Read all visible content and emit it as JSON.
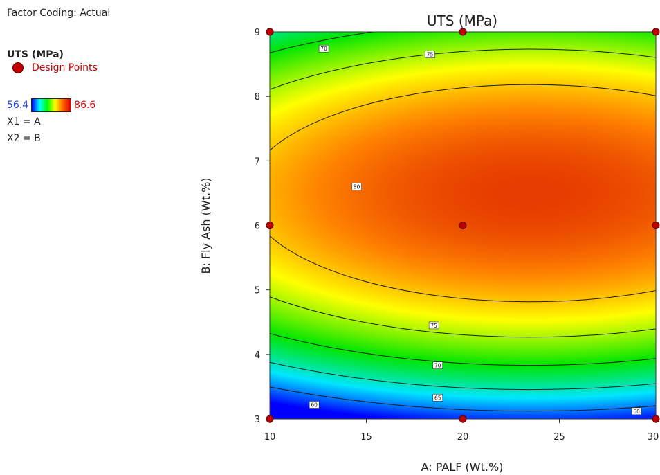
{
  "legend": {
    "factor_coding": "Factor Coding: Actual",
    "response_title": "UTS (MPa)",
    "design_points_label": "Design Points",
    "scale_min": "56.4",
    "scale_max": "86.6",
    "x1": "X1 = A",
    "x2": "X2 = B"
  },
  "colors": {
    "design_point": "#c00000",
    "scale_min_text": "#1f3fe0",
    "scale_max_text": "#dd0000"
  },
  "chart_data": {
    "type": "heatmap",
    "subtype": "contour",
    "title": "UTS (MPa)",
    "xlabel": "A: PALF (Wt.%)",
    "ylabel": "B: Fly Ash (Wt.%)",
    "xlim": [
      10,
      30
    ],
    "ylim": [
      3,
      9
    ],
    "x_ticks": [
      "10",
      "15",
      "20",
      "25",
      "30"
    ],
    "y_ticks": [
      "3",
      "4",
      "5",
      "6",
      "7",
      "8",
      "9"
    ],
    "color_range": [
      56.4,
      86.6
    ],
    "grid": false,
    "contour_levels": [
      60,
      65,
      70,
      75,
      80
    ],
    "contour_labels": [
      {
        "text": "70",
        "x": 12.8,
        "y": 8.74
      },
      {
        "text": "75",
        "x": 18.3,
        "y": 8.65
      },
      {
        "text": "80",
        "x": 14.5,
        "y": 6.6
      },
      {
        "text": "75",
        "x": 18.5,
        "y": 4.45
      },
      {
        "text": "70",
        "x": 18.7,
        "y": 3.83
      },
      {
        "text": "65",
        "x": 18.7,
        "y": 3.33
      },
      {
        "text": "60",
        "x": 12.3,
        "y": 3.22
      },
      {
        "text": "60",
        "x": 29.0,
        "y": 3.12
      }
    ],
    "design_points": [
      {
        "x": 10,
        "y": 9
      },
      {
        "x": 20,
        "y": 9
      },
      {
        "x": 30,
        "y": 9
      },
      {
        "x": 10,
        "y": 6
      },
      {
        "x": 20,
        "y": 6
      },
      {
        "x": 30,
        "y": 6
      },
      {
        "x": 10,
        "y": 3
      },
      {
        "x": 20,
        "y": 3
      },
      {
        "x": 30,
        "y": 3
      }
    ]
  }
}
